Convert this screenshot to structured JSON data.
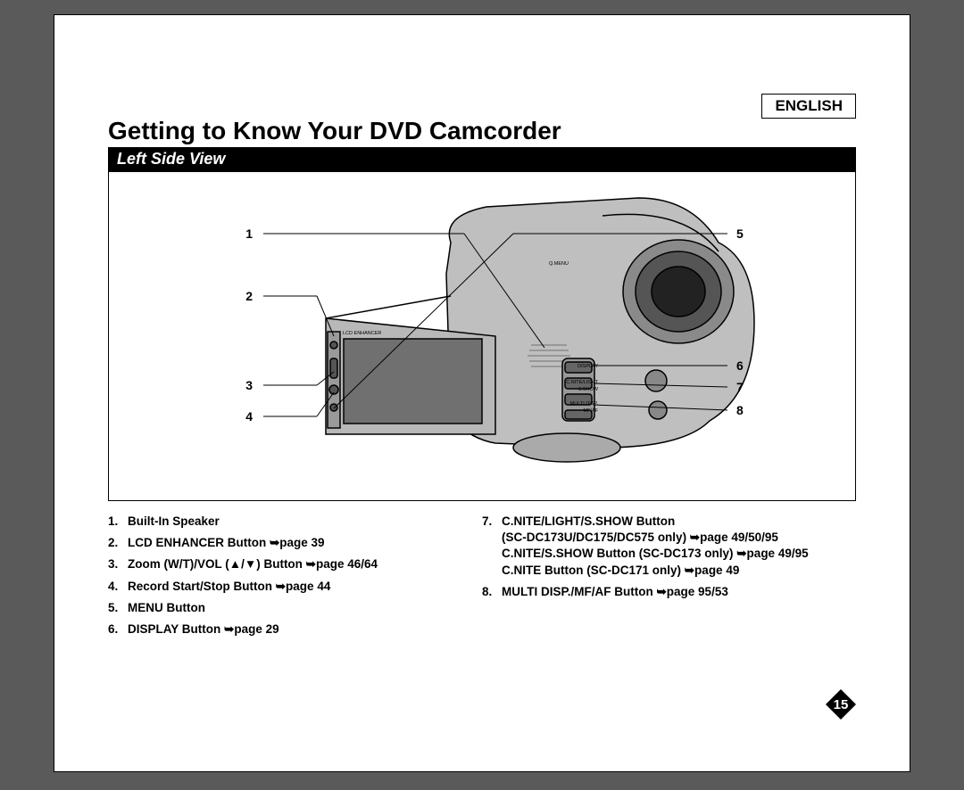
{
  "language_label": "ENGLISH",
  "title": "Getting to Know Your DVD Camcorder",
  "section": "Left Side View",
  "callouts_left": [
    "1",
    "2",
    "3",
    "4"
  ],
  "callouts_right": [
    "5",
    "6",
    "7",
    "8"
  ],
  "legend_left": [
    {
      "n": "1.",
      "text": "Built-In Speaker"
    },
    {
      "n": "2.",
      "text": "LCD ENHANCER Button ➥page 39"
    },
    {
      "n": "3.",
      "text": "Zoom (W/T)/VOL (▲/▼) Button ➥page 46/64"
    },
    {
      "n": "4.",
      "text": "Record Start/Stop Button ➥page 44"
    },
    {
      "n": "5.",
      "text": "MENU Button"
    },
    {
      "n": "6.",
      "text": "DISPLAY Button ➥page 29"
    }
  ],
  "legend_right": [
    {
      "n": "7.",
      "text": "C.NITE/LIGHT/S.SHOW Button",
      "sub": [
        "(SC-DC173U/DC175/DC575 only) ➥page 49/50/95",
        "C.NITE/S.SHOW Button (SC-DC173 only) ➥page 49/95",
        "C.NITE Button (SC-DC171 only) ➥page 49"
      ]
    },
    {
      "n": "8.",
      "text": "MULTI DISP./MF/AF Button ➥page 95/53"
    }
  ],
  "page_number": "15",
  "diagram_labels": {
    "lcd_enhancer": "LCD ENHANCER",
    "display": "DISPLAY",
    "cnite": "C.NITE/LIGHT",
    "sshow": "S.SHOW",
    "multi": "MULTI DISP.",
    "mfaf": "MF/AF",
    "qmenu": "Q.MENU"
  }
}
